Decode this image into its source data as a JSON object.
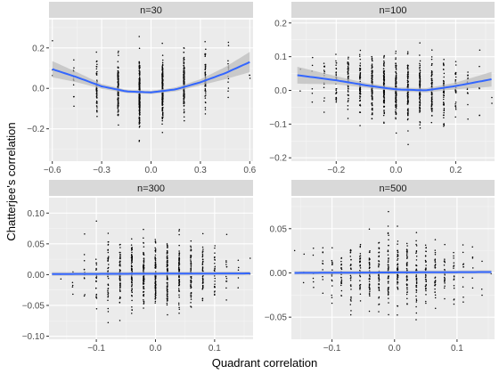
{
  "chart_data": {
    "type": "scatter",
    "xlabel": "Quadrant correlation",
    "ylabel": "Chatterjee's correlation",
    "grid": true,
    "colors": {
      "panel_background": "#ebebeb",
      "strip_background": "#d9d9d9",
      "grid_major": "#ffffff",
      "grid_minor": "#f5f5f5",
      "points": "#000000",
      "smooth_line": "#3366ff",
      "confidence_band": "#bdbdbd",
      "tick_mark": "#333333",
      "tick_label": "#4d4d4d"
    },
    "panels": [
      {
        "title": "n=30",
        "xlim": [
          -0.62,
          0.62
        ],
        "ylim": [
          -0.36,
          0.34
        ],
        "xticks": [
          -0.6,
          -0.3,
          0.0,
          0.3,
          0.6
        ],
        "xtick_labels": [
          "−0.6",
          "−0.3",
          "0.0",
          "0.3",
          "0.6"
        ],
        "yticks": [
          -0.2,
          0.0,
          0.2
        ],
        "ytick_labels": [
          "−0.2",
          "0.0",
          "0.2"
        ],
        "x_values": [
          -0.6,
          -0.47,
          -0.33,
          -0.2,
          -0.07,
          0.07,
          0.2,
          0.33,
          0.47,
          0.6
        ],
        "point_counts": [
          3,
          14,
          55,
          130,
          220,
          220,
          130,
          55,
          14,
          3
        ],
        "y_spread": [
          0.14,
          0.13,
          0.11,
          0.1,
          0.1,
          0.1,
          0.1,
          0.11,
          0.13,
          0.14
        ],
        "smooth": {
          "x": [
            -0.6,
            -0.45,
            -0.3,
            -0.15,
            0.0,
            0.15,
            0.3,
            0.45,
            0.6
          ],
          "y": [
            0.095,
            0.055,
            0.01,
            -0.015,
            -0.02,
            -0.005,
            0.03,
            0.075,
            0.13
          ],
          "band": [
            0.04,
            0.025,
            0.012,
            0.008,
            0.008,
            0.01,
            0.015,
            0.03,
            0.05
          ]
        }
      },
      {
        "title": "n=100",
        "xlim": [
          -0.35,
          0.33
        ],
        "ylim": [
          -0.21,
          0.21
        ],
        "xticks": [
          -0.2,
          0.0,
          0.2
        ],
        "xtick_labels": [
          "−0.2",
          "0.0",
          "0.2"
        ],
        "yticks": [
          -0.2,
          -0.1,
          0.0,
          0.1,
          0.2
        ],
        "ytick_labels": [
          "−0.2",
          "−0.1",
          "0.0",
          "0.1",
          "0.2"
        ],
        "x_values": [
          -0.32,
          -0.28,
          -0.24,
          -0.2,
          -0.16,
          -0.12,
          -0.08,
          -0.04,
          0.0,
          0.04,
          0.08,
          0.12,
          0.16,
          0.2,
          0.24,
          0.28,
          0.32
        ],
        "point_counts": [
          2,
          6,
          15,
          30,
          55,
          80,
          100,
          115,
          120,
          115,
          100,
          80,
          55,
          30,
          15,
          6,
          2
        ],
        "y_spread": [
          0.065,
          0.065,
          0.065,
          0.06,
          0.06,
          0.06,
          0.06,
          0.06,
          0.06,
          0.06,
          0.06,
          0.06,
          0.06,
          0.06,
          0.065,
          0.065,
          0.065
        ],
        "smooth": {
          "x": [
            -0.33,
            -0.2,
            -0.1,
            0.0,
            0.1,
            0.2,
            0.32
          ],
          "y": [
            0.045,
            0.03,
            0.015,
            0.003,
            0.0,
            0.013,
            0.033
          ],
          "band": [
            0.025,
            0.012,
            0.007,
            0.006,
            0.006,
            0.01,
            0.022
          ]
        }
      },
      {
        "title": "n=300",
        "xlim": [
          -0.18,
          0.165
        ],
        "ylim": [
          -0.105,
          0.125
        ],
        "xticks": [
          -0.1,
          0.0,
          0.1
        ],
        "xtick_labels": [
          "−0.1",
          "0.0",
          "0.1"
        ],
        "yticks": [
          -0.1,
          -0.05,
          0.0,
          0.05,
          0.1
        ],
        "ytick_labels": [
          "−0.10",
          "−0.05",
          "0.00",
          "0.05",
          "0.10"
        ],
        "x_values": [
          -0.16,
          -0.14,
          -0.12,
          -0.1,
          -0.08,
          -0.06,
          -0.04,
          -0.02,
          0.0,
          0.02,
          0.04,
          0.06,
          0.08,
          0.1,
          0.12,
          0.14,
          0.16
        ],
        "point_counts": [
          2,
          5,
          12,
          25,
          45,
          65,
          80,
          90,
          92,
          90,
          80,
          65,
          45,
          25,
          12,
          5,
          2
        ],
        "y_spread": [
          0.035,
          0.035,
          0.035,
          0.035,
          0.035,
          0.035,
          0.035,
          0.035,
          0.035,
          0.035,
          0.035,
          0.035,
          0.035,
          0.035,
          0.035,
          0.035,
          0.035
        ],
        "smooth": {
          "x": [
            -0.175,
            0.16
          ],
          "y": [
            0.001,
            0.002
          ],
          "band": [
            0.003,
            0.003
          ]
        }
      },
      {
        "title": "n=500",
        "xlim": [
          -0.165,
          0.16
        ],
        "ylim": [
          -0.075,
          0.085
        ],
        "xticks": [
          -0.1,
          0.0,
          0.1
        ],
        "xtick_labels": [
          "−0.1",
          "0.0",
          "0.1"
        ],
        "yticks": [
          -0.05,
          0.0,
          0.05
        ],
        "ytick_labels": [
          "−0.05",
          "0.00",
          "0.05"
        ],
        "x_values": [
          -0.16,
          -0.145,
          -0.13,
          -0.115,
          -0.1,
          -0.085,
          -0.07,
          -0.055,
          -0.04,
          -0.025,
          -0.01,
          0.005,
          0.02,
          0.035,
          0.05,
          0.065,
          0.08,
          0.095,
          0.11,
          0.125,
          0.14,
          0.155
        ],
        "point_counts": [
          1,
          3,
          6,
          10,
          16,
          24,
          32,
          40,
          46,
          50,
          52,
          52,
          50,
          46,
          40,
          32,
          24,
          16,
          10,
          6,
          3,
          1
        ],
        "y_spread": [
          0.025,
          0.025,
          0.025,
          0.025,
          0.025,
          0.025,
          0.025,
          0.025,
          0.025,
          0.025,
          0.025,
          0.025,
          0.025,
          0.025,
          0.025,
          0.025,
          0.025,
          0.025,
          0.025,
          0.025,
          0.025,
          0.025
        ],
        "smooth": {
          "x": [
            -0.16,
            0.155
          ],
          "y": [
            0.0,
            0.001
          ],
          "band": [
            0.002,
            0.002
          ]
        }
      }
    ]
  }
}
